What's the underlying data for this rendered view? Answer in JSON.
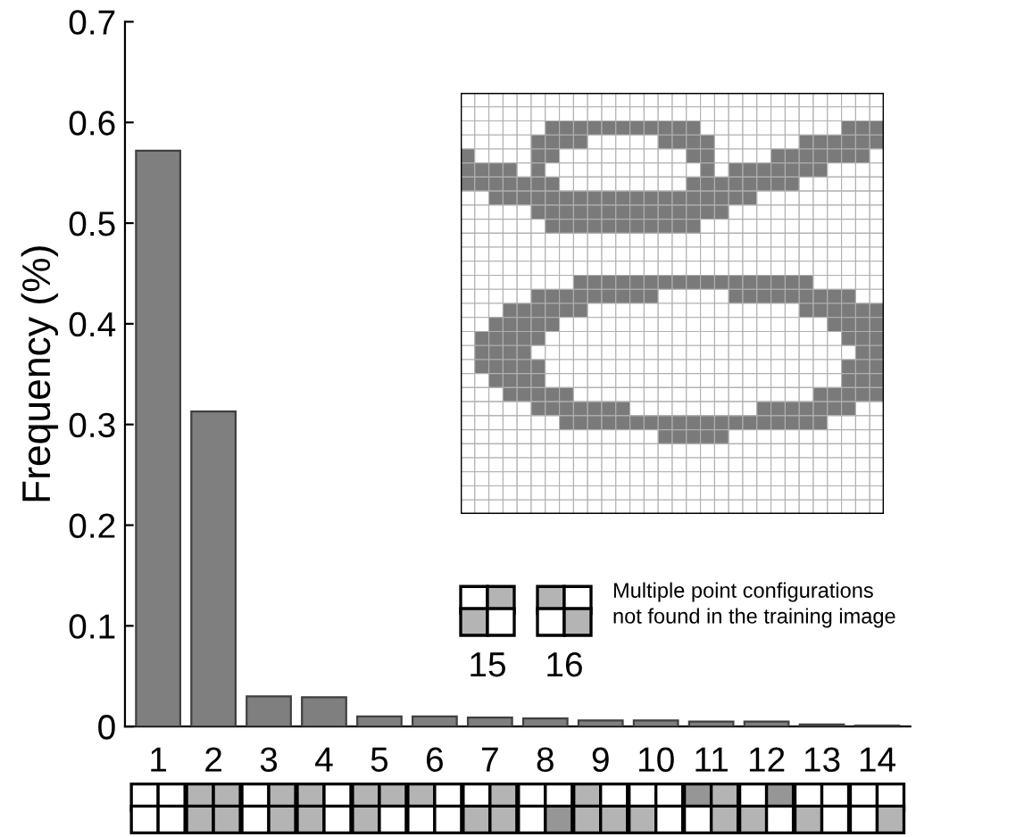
{
  "chart_data": {
    "type": "bar",
    "ylabel": "Frequency (%)",
    "categories": [
      "1",
      "2",
      "3",
      "4",
      "5",
      "6",
      "7",
      "8",
      "9",
      "10",
      "11",
      "12",
      "13",
      "14"
    ],
    "values": [
      0.572,
      0.313,
      0.03,
      0.029,
      0.01,
      0.01,
      0.009,
      0.008,
      0.006,
      0.006,
      0.005,
      0.005,
      0.002,
      0.001
    ],
    "color": "#7f7f7f",
    "ylim": [
      0,
      0.7
    ],
    "yticks": [
      0,
      0.1,
      0.2,
      0.3,
      0.4,
      0.5,
      0.6,
      0.7
    ],
    "grid": false,
    "annotations": [
      "15",
      "16",
      "Multiple point configurations\nnot found in the training image"
    ]
  }
}
